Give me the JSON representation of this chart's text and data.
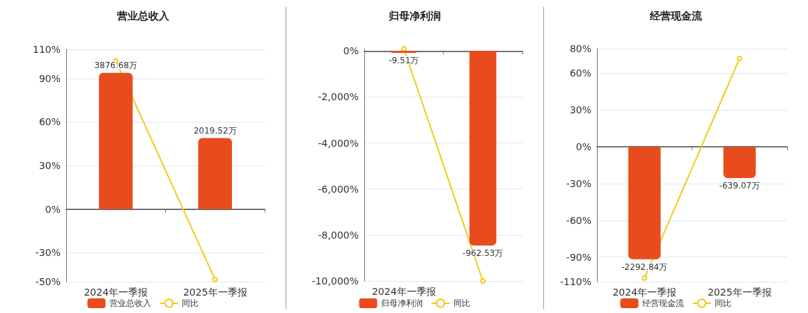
{
  "chart_data": [
    {
      "type": "bar",
      "title": "营业总收入",
      "categories": [
        "2024年一季报",
        "2025年一季报"
      ],
      "series": [
        {
          "name": "营业总收入",
          "axis": "y2",
          "color": "#e84c1d",
          "values": [
            3876.68,
            2019.52
          ],
          "value_labels": [
            "3876.68万",
            "2019.52万"
          ]
        },
        {
          "name": "同比",
          "type": "line",
          "color": "#f2ca17",
          "values": [
            102,
            -48.5
          ],
          "marker": "circle"
        }
      ],
      "ylim": [
        -50,
        110
      ],
      "yticks": [
        {
          "value": -50,
          "label": "-50%"
        },
        {
          "value": -30,
          "label": "-30%"
        },
        {
          "value": 0,
          "label": "0%"
        },
        {
          "value": 30,
          "label": "30%"
        },
        {
          "value": 60,
          "label": "60%"
        },
        {
          "value": 90,
          "label": "90%"
        },
        {
          "value": 110,
          "label": "110%"
        }
      ],
      "y2lim": [
        -2065,
        4543
      ],
      "grid": "y",
      "legend": "bottom"
    },
    {
      "type": "bar",
      "title": "归母净利润",
      "categories": [
        "2024年一季报",
        null
      ],
      "series": [
        {
          "name": "归母净利润",
          "axis": "y2",
          "color": "#e84c1d",
          "values": [
            -9.51,
            -962.53
          ],
          "value_labels": [
            "-9.51万",
            "-962.53万"
          ]
        },
        {
          "name": "同比",
          "type": "line",
          "color": "#f2ca17",
          "values": [
            100,
            -10000
          ],
          "marker": "circle"
        }
      ],
      "ylim": [
        -10000,
        100
      ],
      "yticks": [
        {
          "value": -10000,
          "label": "-10,000%"
        },
        {
          "value": -8000,
          "label": "-8,000%"
        },
        {
          "value": -6000,
          "label": "-6,000%"
        },
        {
          "value": -4000,
          "label": "-4,000%"
        },
        {
          "value": -2000,
          "label": "-2,000%"
        },
        {
          "value": 0,
          "label": "0%"
        }
      ],
      "y2lim": [
        -1138,
        11.4
      ],
      "grid": "y",
      "legend": "bottom"
    },
    {
      "type": "bar",
      "title": "经营现金流",
      "categories": [
        "2024年一季报",
        "2025年一季报"
      ],
      "series": [
        {
          "name": "经营现金流",
          "axis": "y2",
          "color": "#e84c1d",
          "values": [
            -2292.84,
            -639.07
          ],
          "value_labels": [
            "-2292.84万",
            "-639.07万"
          ]
        },
        {
          "name": "同比",
          "type": "line",
          "color": "#f2ca17",
          "values": [
            -107,
            72
          ],
          "marker": "circle"
        }
      ],
      "ylim": [
        -110,
        80
      ],
      "yticks": [
        {
          "value": -110,
          "label": "-110%"
        },
        {
          "value": -90,
          "label": "-90%"
        },
        {
          "value": -60,
          "label": "-60%"
        },
        {
          "value": -30,
          "label": "-30%"
        },
        {
          "value": 0,
          "label": "0%"
        },
        {
          "value": 30,
          "label": "30%"
        },
        {
          "value": 60,
          "label": "60%"
        },
        {
          "value": 80,
          "label": "80%"
        }
      ],
      "y2lim": [
        -2750,
        2000
      ],
      "grid": "y",
      "legend": "bottom"
    }
  ]
}
